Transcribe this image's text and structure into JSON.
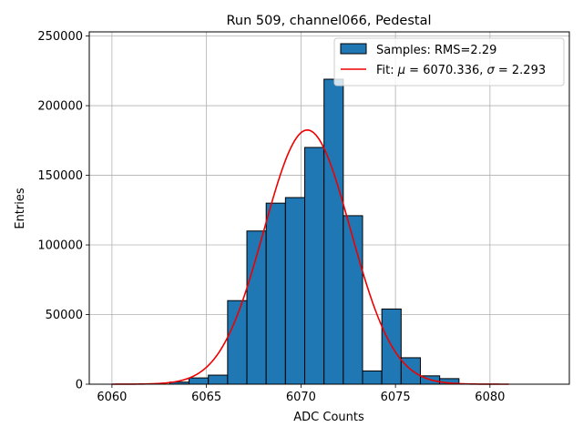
{
  "chart_data": {
    "type": "bar",
    "title": "Run 509, channel066, Pedestal",
    "xlabel": "ADC Counts",
    "ylabel": "Entries",
    "xlim": [
      6058.8,
      6084.2
    ],
    "ylim": [
      0,
      253000
    ],
    "grid": true,
    "legend_position": "top-right",
    "x_ticks": [
      6060,
      6065,
      6070,
      6075,
      6080
    ],
    "y_ticks": [
      0,
      50000,
      100000,
      150000,
      200000,
      250000
    ],
    "bin_width": 1.02,
    "series": [
      {
        "name": "Samples: RMS=2.29",
        "type": "histogram",
        "color": "#1f77b4",
        "edgecolor": "#000000",
        "bins": [
          {
            "x0": 6063.06,
            "value": 1500
          },
          {
            "x0": 6064.08,
            "value": 4500
          },
          {
            "x0": 6065.1,
            "value": 6500
          },
          {
            "x0": 6066.12,
            "value": 60000
          },
          {
            "x0": 6067.14,
            "value": 110000
          },
          {
            "x0": 6068.16,
            "value": 130000
          },
          {
            "x0": 6069.18,
            "value": 134000
          },
          {
            "x0": 6070.2,
            "value": 170000
          },
          {
            "x0": 6071.22,
            "value": 219000
          },
          {
            "x0": 6072.24,
            "value": 121000
          },
          {
            "x0": 6073.26,
            "value": 9500
          },
          {
            "x0": 6074.28,
            "value": 54000
          },
          {
            "x0": 6075.3,
            "value": 19000
          },
          {
            "x0": 6076.32,
            "value": 6000
          },
          {
            "x0": 6077.34,
            "value": 4000
          }
        ]
      },
      {
        "name": "Fit: μ = 6070.336, σ = 2.293",
        "legend_parts": [
          "Fit: ",
          "μ",
          " = 6070.336, ",
          "σ",
          " = 2.293"
        ],
        "type": "line",
        "color": "#ee0000",
        "function": "gaussian",
        "amplitude": 182500,
        "mu": 6070.336,
        "sigma": 2.293,
        "x_range": [
          6060,
          6081
        ]
      }
    ]
  }
}
